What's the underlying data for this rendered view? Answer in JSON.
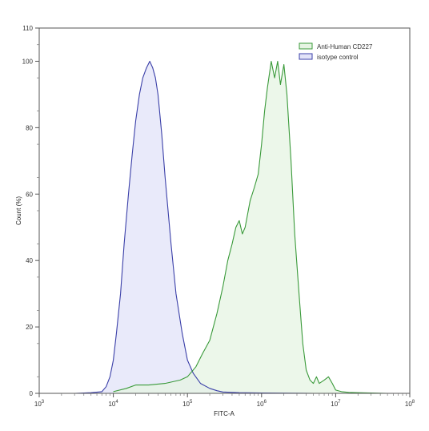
{
  "chart_data": {
    "type": "area",
    "title": "",
    "xlabel": "FITC-A",
    "ylabel": "Count  (%)",
    "xscale": "log",
    "xlim": [
      1000,
      100000000
    ],
    "ylim": [
      0,
      110
    ],
    "x_tick_values": [
      1000,
      10000,
      100000,
      1000000,
      10000000,
      100000000
    ],
    "x_tick_labels": [
      {
        "base": "10",
        "exp": "3"
      },
      {
        "base": "10",
        "exp": "4"
      },
      {
        "base": "10",
        "exp": "5"
      },
      {
        "base": "10",
        "exp": "6"
      },
      {
        "base": "10",
        "exp": "7"
      },
      {
        "base": "10",
        "exp": "8"
      }
    ],
    "y_ticks": [
      0,
      20,
      40,
      60,
      80,
      100,
      110
    ],
    "grid": false,
    "legend_position": "top-right",
    "series": [
      {
        "name": "Anti-Human CD227",
        "color": "#3a9a3a",
        "fill": "#e6f4e3",
        "x": [
          10000,
          15000,
          20000,
          30000,
          50000,
          80000,
          100000,
          130000,
          160000,
          200000,
          250000,
          300000,
          350000,
          400000,
          450000,
          500000,
          550000,
          600000,
          700000,
          800000,
          900000,
          1000000,
          1100000,
          1200000,
          1350000,
          1500000,
          1650000,
          1800000,
          2000000,
          2200000,
          2500000,
          2800000,
          3200000,
          3600000,
          4000000,
          4500000,
          5000000,
          5500000,
          6000000,
          7000000,
          8000000,
          9000000,
          10000000,
          12000000,
          15000000,
          20000000,
          30000000,
          50000000
        ],
        "y": [
          0.5,
          1.5,
          2.5,
          2.5,
          3,
          4,
          5,
          8,
          12,
          16,
          24,
          32,
          40,
          45,
          50,
          52,
          48,
          50,
          58,
          62,
          66,
          75,
          85,
          92,
          100,
          95,
          100,
          93,
          99,
          90,
          70,
          48,
          30,
          15,
          7,
          4,
          3,
          5,
          3,
          4,
          5,
          3,
          1,
          0.5,
          0.3,
          0.2,
          0.1,
          0
        ],
        "y_at_x_units": "percent of max count"
      },
      {
        "name": "isotype control",
        "color": "#3a3fa8",
        "fill": "#e2e3f8",
        "x": [
          3000,
          5000,
          7000,
          8000,
          9000,
          10000,
          11000,
          12500,
          14000,
          16000,
          18000,
          20000,
          22500,
          25000,
          28000,
          31000,
          34000,
          37000,
          40000,
          45000,
          50000,
          60000,
          70000,
          85000,
          100000,
          120000,
          150000,
          200000,
          250000,
          300000,
          500000,
          1000000,
          5000000
        ],
        "y": [
          0,
          0.2,
          0.5,
          2,
          5,
          10,
          18,
          30,
          45,
          60,
          72,
          82,
          90,
          95,
          98,
          100,
          98,
          95,
          90,
          78,
          65,
          45,
          30,
          18,
          10,
          6,
          3,
          1.5,
          0.8,
          0.4,
          0.2,
          0.1,
          0
        ],
        "y_at_x_units": "percent of max count"
      }
    ]
  }
}
